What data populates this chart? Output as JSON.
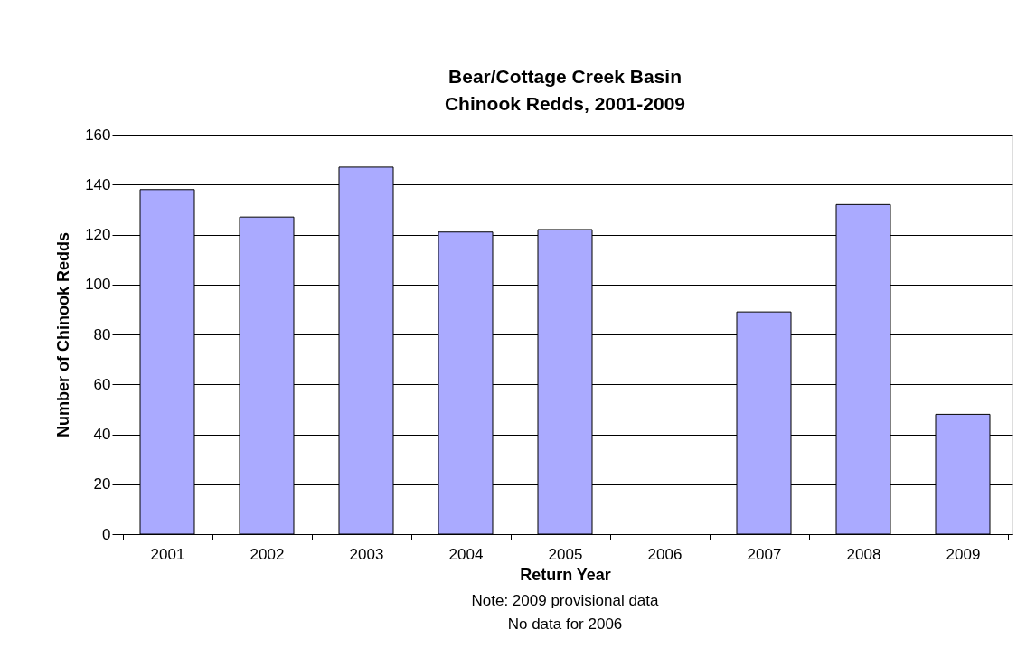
{
  "chart_data": {
    "type": "bar",
    "title": "Bear/Cottage Creek Basin\nChinook Redds, 2001-2009",
    "xlabel": "Return Year",
    "ylabel": "Number of Chinook Redds",
    "categories": [
      "2001",
      "2002",
      "2003",
      "2004",
      "2005",
      "2006",
      "2007",
      "2008",
      "2009"
    ],
    "values": [
      138,
      127,
      147,
      121,
      122,
      null,
      89,
      132,
      48
    ],
    "color": "#aaaaff",
    "ylim": [
      0,
      160
    ],
    "yticks": [
      0,
      20,
      40,
      60,
      80,
      100,
      120,
      140,
      160
    ],
    "grid": "y",
    "annotations": [
      "Note: 2009 provisional data",
      "No data for 2006"
    ]
  }
}
